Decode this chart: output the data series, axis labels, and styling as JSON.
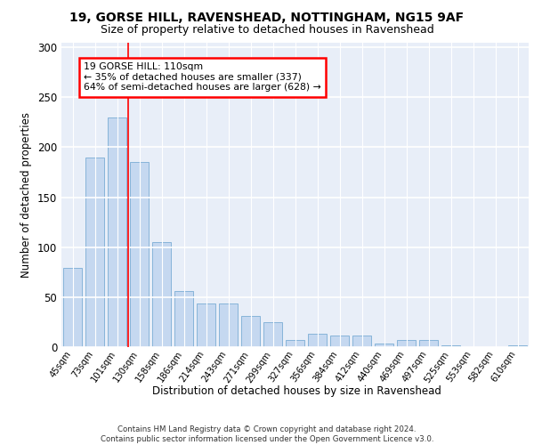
{
  "title1": "19, GORSE HILL, RAVENSHEAD, NOTTINGHAM, NG15 9AF",
  "title2": "Size of property relative to detached houses in Ravenshead",
  "xlabel": "Distribution of detached houses by size in Ravenshead",
  "ylabel": "Number of detached properties",
  "categories": [
    "45sqm",
    "73sqm",
    "101sqm",
    "130sqm",
    "158sqm",
    "186sqm",
    "214sqm",
    "243sqm",
    "271sqm",
    "299sqm",
    "327sqm",
    "356sqm",
    "384sqm",
    "412sqm",
    "440sqm",
    "469sqm",
    "497sqm",
    "525sqm",
    "553sqm",
    "582sqm",
    "610sqm"
  ],
  "values": [
    79,
    190,
    230,
    185,
    105,
    56,
    44,
    44,
    31,
    25,
    7,
    13,
    12,
    12,
    4,
    7,
    7,
    2,
    0,
    0,
    2
  ],
  "bar_color": "#c5d8f0",
  "bar_edge_color": "#7aadd4",
  "red_line_x": 2.5,
  "annotation_text": "19 GORSE HILL: 110sqm\n← 35% of detached houses are smaller (337)\n64% of semi-detached houses are larger (628) →",
  "annotation_box_color": "white",
  "annotation_box_edge_color": "red",
  "footer": "Contains HM Land Registry data © Crown copyright and database right 2024.\nContains public sector information licensed under the Open Government Licence v3.0.",
  "ylim": [
    0,
    305
  ],
  "background_color": "#e8eef8",
  "grid_color": "white",
  "title1_fontsize": 10,
  "title2_fontsize": 9
}
